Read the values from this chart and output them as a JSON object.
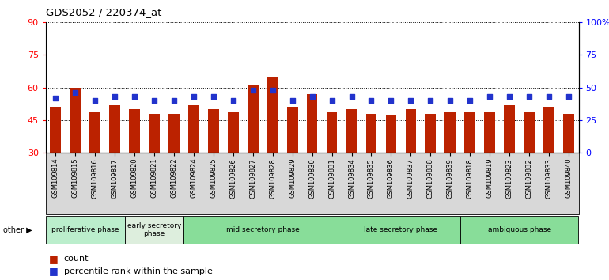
{
  "title": "GDS2052 / 220374_at",
  "samples": [
    "GSM109814",
    "GSM109815",
    "GSM109816",
    "GSM109817",
    "GSM109820",
    "GSM109821",
    "GSM109822",
    "GSM109824",
    "GSM109825",
    "GSM109826",
    "GSM109827",
    "GSM109828",
    "GSM109829",
    "GSM109830",
    "GSM109831",
    "GSM109834",
    "GSM109835",
    "GSM109836",
    "GSM109837",
    "GSM109838",
    "GSM109839",
    "GSM109818",
    "GSM109819",
    "GSM109823",
    "GSM109832",
    "GSM109833",
    "GSM109840"
  ],
  "counts": [
    51,
    60,
    49,
    52,
    50,
    48,
    48,
    52,
    50,
    49,
    61,
    65,
    51,
    57,
    49,
    50,
    48,
    47,
    50,
    48,
    49,
    49,
    49,
    52,
    49,
    51,
    48
  ],
  "percentiles": [
    42,
    46,
    40,
    43,
    43,
    40,
    40,
    43,
    43,
    40,
    48,
    48,
    40,
    43,
    40,
    43,
    40,
    40,
    40,
    40,
    40,
    40,
    43,
    43,
    43,
    43,
    43
  ],
  "groups": [
    {
      "label": "proliferative phase",
      "start": 0,
      "end": 4,
      "color": "#bbeecc"
    },
    {
      "label": "early secretory\nphase",
      "start": 4,
      "end": 7,
      "color": "#ddeedd"
    },
    {
      "label": "mid secretory phase",
      "start": 7,
      "end": 15,
      "color": "#88dd99"
    },
    {
      "label": "late secretory phase",
      "start": 15,
      "end": 21,
      "color": "#88dd99"
    },
    {
      "label": "ambiguous phase",
      "start": 21,
      "end": 27,
      "color": "#88dd99"
    }
  ],
  "ylim_left": [
    30,
    90
  ],
  "ylim_right": [
    0,
    100
  ],
  "bar_color": "#bb2200",
  "dot_color": "#2233cc",
  "yticks_left": [
    30,
    45,
    60,
    75,
    90
  ],
  "yticks_right": [
    0,
    25,
    50,
    75,
    100
  ],
  "background_color": "#ffffff"
}
